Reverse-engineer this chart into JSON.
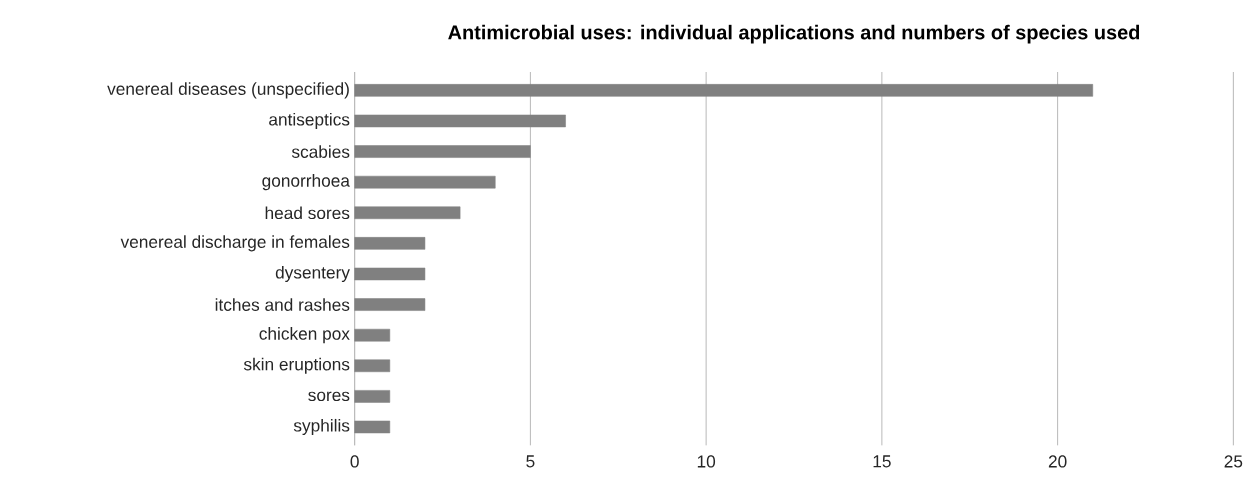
{
  "chart_data": {
    "type": "bar",
    "orientation": "horizontal",
    "title": "**Antimicrobial uses: individual applications and numbers of species used**",
    "categories": [
      "venereal diseases (unspecified)",
      "antiseptics",
      "scabies",
      "gonorrhoea",
      "head sores",
      "venereal discharge in females",
      "dysentery",
      "itches and rashes",
      "chicken pox",
      "skin eruptions",
      "sores",
      "syphilis"
    ],
    "values": [
      21,
      6,
      5,
      4,
      3,
      2,
      2,
      2,
      1,
      1,
      1,
      1
    ],
    "color": "#808080",
    "xlim": [
      0,
      25
    ],
    "xticks": [
      0,
      5,
      10,
      15,
      20,
      25
    ],
    "grid": "x"
  }
}
